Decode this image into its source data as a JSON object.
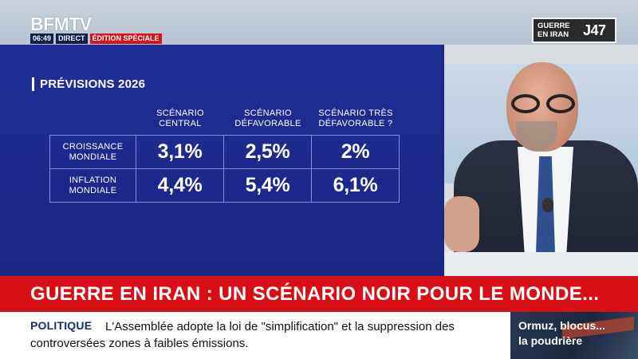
{
  "channel": {
    "logo": "BFMTV",
    "time": "06:49",
    "live": "DIRECT",
    "edition": "ÉDITION SPÉCIALE"
  },
  "corner": {
    "topic_line1": "GUERRE",
    "topic_line2": "EN IRAN",
    "day": "J47"
  },
  "graphic": {
    "title": "PRÉVISIONS 2026",
    "columns": [
      {
        "line1": "SCÉNARIO",
        "line2": "CENTRAL"
      },
      {
        "line1": "SCÉNARIO",
        "line2": "DÉFAVORABLE"
      },
      {
        "line1": "SCÉNARIO TRÈS",
        "line2": "DÉFAVORABLE ?"
      }
    ],
    "rows": [
      {
        "line1": "CROISSANCE",
        "line2": "MONDIALE",
        "values": [
          "3,1%",
          "2,5%",
          "2%"
        ]
      },
      {
        "line1": "INFLATION",
        "line2": "MONDIALE",
        "values": [
          "4,4%",
          "5,4%",
          "6,1%"
        ]
      }
    ]
  },
  "headline": "GUERRE EN IRAN : UN SCÉNARIO NOIR POUR LE MONDE...",
  "ticker": {
    "category": "POLITIQUE",
    "line1": "L'Assemblée adopte la loi de \"simplification\" et la suppression des",
    "line2": "controversées zones à faibles émissions."
  },
  "teaser": {
    "line1": "Ormuz, blocus...",
    "line2": "la poudrière"
  },
  "colors": {
    "panel": "#1f2f97",
    "headline": "#d90f17",
    "accent_red": "#d6141d"
  }
}
